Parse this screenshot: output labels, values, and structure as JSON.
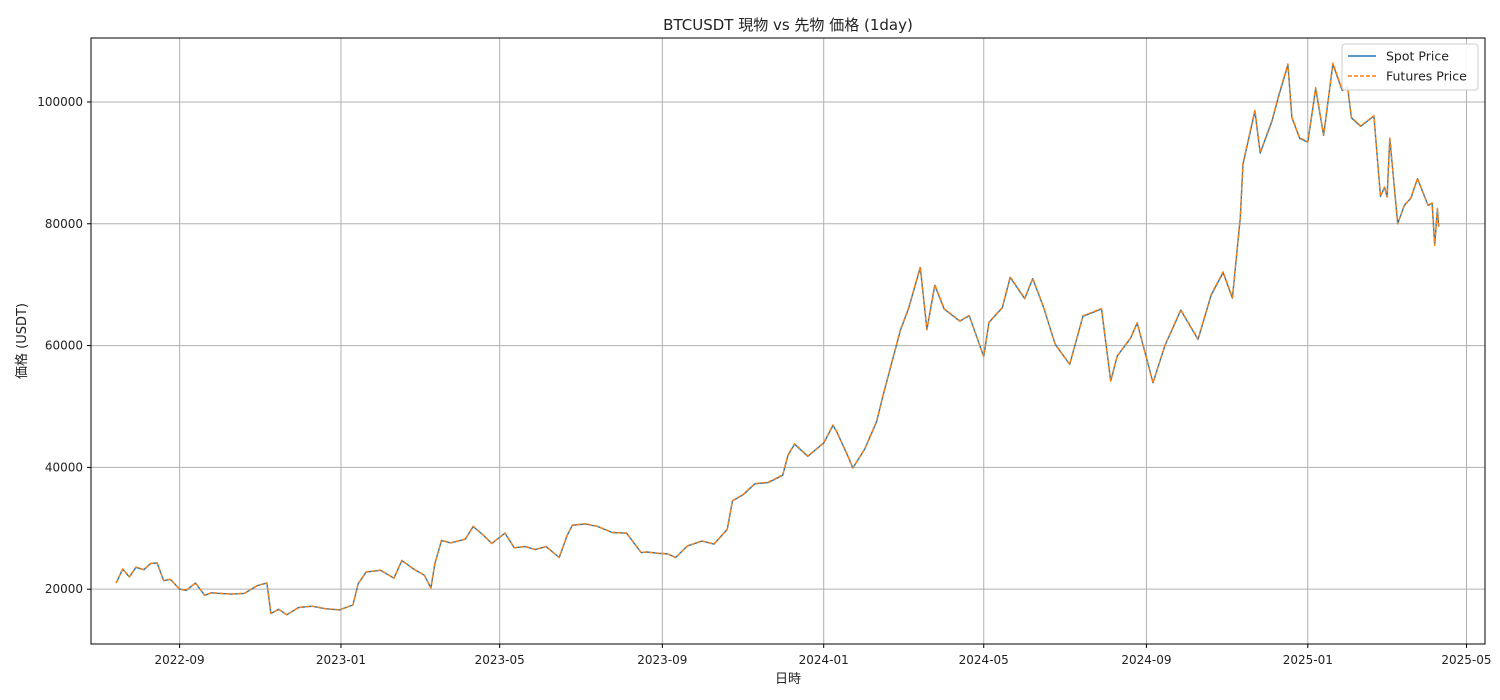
{
  "chart_data": {
    "type": "line",
    "title": "BTCUSDT 現物 vs 先物 価格 (1day)",
    "xlabel": "日時",
    "ylabel": "価格 (USDT)",
    "x_ticks": [
      "2022-09",
      "2023-01",
      "2023-05",
      "2023-09",
      "2024-01",
      "2024-05",
      "2024-09",
      "2025-01",
      "2025-05"
    ],
    "y_ticks": [
      20000,
      40000,
      60000,
      80000,
      100000
    ],
    "xlim": [
      "2022-06-26",
      "2025-05-15"
    ],
    "ylim": [
      11000,
      110500
    ],
    "grid": true,
    "legend_position": "top-right",
    "colors": {
      "spot": "#1f77b4",
      "futures": "#ff7f0e"
    },
    "series": [
      {
        "name": "Spot Price",
        "style": "solid",
        "x": [
          "2022-07-15",
          "2022-07-20",
          "2022-07-25",
          "2022-07-30",
          "2022-08-05",
          "2022-08-10",
          "2022-08-15",
          "2022-08-20",
          "2022-08-25",
          "2022-09-01",
          "2022-09-06",
          "2022-09-13",
          "2022-09-20",
          "2022-09-25",
          "2022-10-01",
          "2022-10-10",
          "2022-10-20",
          "2022-10-30",
          "2022-11-06",
          "2022-11-09",
          "2022-11-15",
          "2022-11-21",
          "2022-11-30",
          "2022-12-10",
          "2022-12-20",
          "2022-12-31",
          "2023-01-10",
          "2023-01-14",
          "2023-01-20",
          "2023-01-31",
          "2023-02-10",
          "2023-02-16",
          "2023-02-25",
          "2023-03-05",
          "2023-03-10",
          "2023-03-13",
          "2023-03-18",
          "2023-03-25",
          "2023-04-05",
          "2023-04-11",
          "2023-04-19",
          "2023-04-25",
          "2023-05-05",
          "2023-05-12",
          "2023-05-20",
          "2023-05-28",
          "2023-06-05",
          "2023-06-15",
          "2023-06-21",
          "2023-06-25",
          "2023-07-05",
          "2023-07-14",
          "2023-07-25",
          "2023-08-05",
          "2023-08-16",
          "2023-08-20",
          "2023-08-29",
          "2023-09-05",
          "2023-09-11",
          "2023-09-20",
          "2023-10-01",
          "2023-10-10",
          "2023-10-20",
          "2023-10-24",
          "2023-11-01",
          "2023-11-10",
          "2023-11-20",
          "2023-12-01",
          "2023-12-05",
          "2023-12-10",
          "2023-12-20",
          "2024-01-01",
          "2024-01-08",
          "2024-01-11",
          "2024-01-20",
          "2024-01-23",
          "2024-02-01",
          "2024-02-10",
          "2024-02-15",
          "2024-02-28",
          "2024-03-05",
          "2024-03-14",
          "2024-03-19",
          "2024-03-25",
          "2024-04-01",
          "2024-04-13",
          "2024-04-20",
          "2024-05-01",
          "2024-05-05",
          "2024-05-15",
          "2024-05-21",
          "2024-06-01",
          "2024-06-07",
          "2024-06-15",
          "2024-06-24",
          "2024-07-05",
          "2024-07-15",
          "2024-07-29",
          "2024-08-05",
          "2024-08-10",
          "2024-08-20",
          "2024-08-25",
          "2024-09-06",
          "2024-09-15",
          "2024-09-27",
          "2024-10-10",
          "2024-10-20",
          "2024-10-29",
          "2024-11-05",
          "2024-11-11",
          "2024-11-13",
          "2024-11-22",
          "2024-11-26",
          "2024-12-05",
          "2024-12-10",
          "2024-12-17",
          "2024-12-20",
          "2024-12-26",
          "2025-01-01",
          "2025-01-07",
          "2025-01-13",
          "2025-01-20",
          "2025-01-27",
          "2025-01-31",
          "2025-02-03",
          "2025-02-10",
          "2025-02-20",
          "2025-02-25",
          "2025-02-28",
          "2025-03-02",
          "2025-03-04",
          "2025-03-10",
          "2025-03-15",
          "2025-03-20",
          "2025-03-25",
          "2025-04-02",
          "2025-04-05",
          "2025-04-07",
          "2025-04-09",
          "2025-04-10"
        ],
        "values": [
          21000,
          23300,
          22000,
          23600,
          23200,
          24200,
          24300,
          21400,
          21600,
          20000,
          19800,
          21000,
          19000,
          19400,
          19300,
          19200,
          19300,
          20600,
          21000,
          16000,
          16700,
          15800,
          17000,
          17200,
          16800,
          16600,
          17400,
          20900,
          22800,
          23100,
          21800,
          24700,
          23300,
          22300,
          20200,
          24200,
          28000,
          27600,
          28200,
          30300,
          28800,
          27500,
          29200,
          26800,
          27000,
          26500,
          27000,
          25200,
          28800,
          30500,
          30700,
          30300,
          29300,
          29200,
          26000,
          26100,
          25900,
          25800,
          25200,
          27100,
          27900,
          27400,
          29800,
          34500,
          35500,
          37300,
          37500,
          38700,
          42000,
          43800,
          41800,
          44000,
          46900,
          45800,
          41500,
          39900,
          43000,
          47500,
          51900,
          62500,
          66000,
          72800,
          62600,
          69900,
          66000,
          64000,
          64900,
          58200,
          63800,
          66200,
          71200,
          67700,
          71000,
          66400,
          60200,
          56900,
          64800,
          66000,
          54200,
          58300,
          61200,
          63700,
          53900,
          60000,
          65800,
          61000,
          68300,
          72000,
          67800,
          81000,
          89800,
          98500,
          91600,
          96900,
          101000,
          106100,
          97400,
          94000,
          93400,
          102200,
          94500,
          106200,
          101900,
          102500,
          97400,
          96000,
          97700,
          84500,
          86000,
          84400,
          94000,
          80000,
          83000,
          84200,
          87400,
          83000,
          83400,
          76500,
          82500,
          79500
        ]
      },
      {
        "name": "Futures Price",
        "style": "dashed",
        "x": [
          "2022-07-15",
          "2022-07-20",
          "2022-07-25",
          "2022-07-30",
          "2022-08-05",
          "2022-08-10",
          "2022-08-15",
          "2022-08-20",
          "2022-08-25",
          "2022-09-01",
          "2022-09-06",
          "2022-09-13",
          "2022-09-20",
          "2022-09-25",
          "2022-10-01",
          "2022-10-10",
          "2022-10-20",
          "2022-10-30",
          "2022-11-06",
          "2022-11-09",
          "2022-11-15",
          "2022-11-21",
          "2022-11-30",
          "2022-12-10",
          "2022-12-20",
          "2022-12-31",
          "2023-01-10",
          "2023-01-14",
          "2023-01-20",
          "2023-01-31",
          "2023-02-10",
          "2023-02-16",
          "2023-02-25",
          "2023-03-05",
          "2023-03-10",
          "2023-03-13",
          "2023-03-18",
          "2023-03-25",
          "2023-04-05",
          "2023-04-11",
          "2023-04-19",
          "2023-04-25",
          "2023-05-05",
          "2023-05-12",
          "2023-05-20",
          "2023-05-28",
          "2023-06-05",
          "2023-06-15",
          "2023-06-21",
          "2023-06-25",
          "2023-07-05",
          "2023-07-14",
          "2023-07-25",
          "2023-08-05",
          "2023-08-16",
          "2023-08-20",
          "2023-08-29",
          "2023-09-05",
          "2023-09-11",
          "2023-09-20",
          "2023-10-01",
          "2023-10-10",
          "2023-10-20",
          "2023-10-24",
          "2023-11-01",
          "2023-11-10",
          "2023-11-20",
          "2023-12-01",
          "2023-12-05",
          "2023-12-10",
          "2023-12-20",
          "2024-01-01",
          "2024-01-08",
          "2024-01-11",
          "2024-01-20",
          "2024-01-23",
          "2024-02-01",
          "2024-02-10",
          "2024-02-15",
          "2024-02-28",
          "2024-03-05",
          "2024-03-14",
          "2024-03-19",
          "2024-03-25",
          "2024-04-01",
          "2024-04-13",
          "2024-04-20",
          "2024-05-01",
          "2024-05-05",
          "2024-05-15",
          "2024-05-21",
          "2024-06-01",
          "2024-06-07",
          "2024-06-15",
          "2024-06-24",
          "2024-07-05",
          "2024-07-15",
          "2024-07-29",
          "2024-08-05",
          "2024-08-10",
          "2024-08-20",
          "2024-08-25",
          "2024-09-06",
          "2024-09-15",
          "2024-09-27",
          "2024-10-10",
          "2024-10-20",
          "2024-10-29",
          "2024-11-05",
          "2024-11-11",
          "2024-11-13",
          "2024-11-22",
          "2024-11-26",
          "2024-12-05",
          "2024-12-10",
          "2024-12-17",
          "2024-12-20",
          "2024-12-26",
          "2025-01-01",
          "2025-01-07",
          "2025-01-13",
          "2025-01-20",
          "2025-01-27",
          "2025-01-31",
          "2025-02-03",
          "2025-02-10",
          "2025-02-20",
          "2025-02-25",
          "2025-02-28",
          "2025-03-02",
          "2025-03-04",
          "2025-03-10",
          "2025-03-15",
          "2025-03-20",
          "2025-03-25",
          "2025-04-02",
          "2025-04-05",
          "2025-04-07",
          "2025-04-09",
          "2025-04-10"
        ],
        "values": [
          21050,
          23330,
          22030,
          23640,
          23220,
          24230,
          24330,
          21420,
          21630,
          20020,
          19820,
          21030,
          19010,
          19420,
          19320,
          19210,
          19320,
          20630,
          21030,
          15990,
          16710,
          15790,
          17010,
          17210,
          16810,
          16610,
          17420,
          20930,
          22830,
          23130,
          21810,
          24740,
          23320,
          22320,
          20190,
          24230,
          28040,
          27620,
          28230,
          30340,
          28820,
          27520,
          29230,
          26810,
          27020,
          26510,
          27020,
          25190,
          28830,
          30540,
          30730,
          30320,
          29320,
          29220,
          26000,
          26110,
          25910,
          25810,
          25190,
          27120,
          27920,
          27420,
          29840,
          34550,
          35550,
          37350,
          37560,
          38780,
          42080,
          43890,
          41860,
          44070,
          46980,
          45850,
          41520,
          39900,
          43050,
          47560,
          51980,
          62620,
          66100,
          72950,
          62640,
          70010,
          66090,
          64050,
          64970,
          58210,
          63870,
          66280,
          71300,
          67760,
          71070,
          66460,
          60220,
          56900,
          64870,
          66080,
          54180,
          58330,
          61250,
          63770,
          53890,
          60050,
          65900,
          61060,
          68410,
          72120,
          67890,
          81150,
          89980,
          98700,
          91740,
          97090,
          101180,
          106250,
          97520,
          94090,
          93480,
          102380,
          94590,
          106380,
          102020,
          102610,
          97480,
          96060,
          97770,
          84520,
          86040,
          84430,
          94070,
          80010,
          83040,
          84240,
          87460,
          83030,
          83430,
          76460,
          82540,
          79520
        ]
      }
    ]
  }
}
